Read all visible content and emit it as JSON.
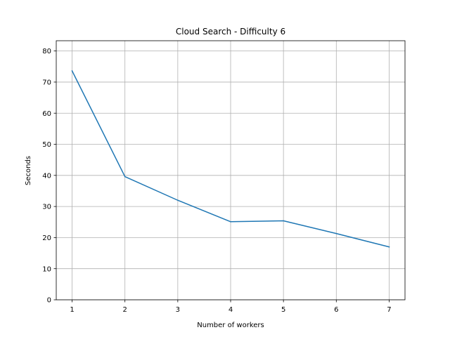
{
  "chart_data": {
    "type": "line",
    "title": "Cloud Search - Difficulty 6",
    "xlabel": "Number of workers",
    "ylabel": "Seconds",
    "x": [
      1,
      2,
      3,
      4,
      5,
      6,
      7
    ],
    "series": [
      {
        "values": [
          73.6,
          39.6,
          32.0,
          25.1,
          25.4,
          21.3,
          17.0
        ],
        "color": "#1f77b4"
      }
    ],
    "xticks": [
      "1",
      "2",
      "3",
      "4",
      "5",
      "6",
      "7"
    ],
    "yticks": [
      "0",
      "10",
      "20",
      "30",
      "40",
      "50",
      "60",
      "70",
      "80"
    ],
    "xlim": [
      0.7,
      7.3
    ],
    "ylim": [
      0,
      83.3
    ],
    "grid": true
  }
}
